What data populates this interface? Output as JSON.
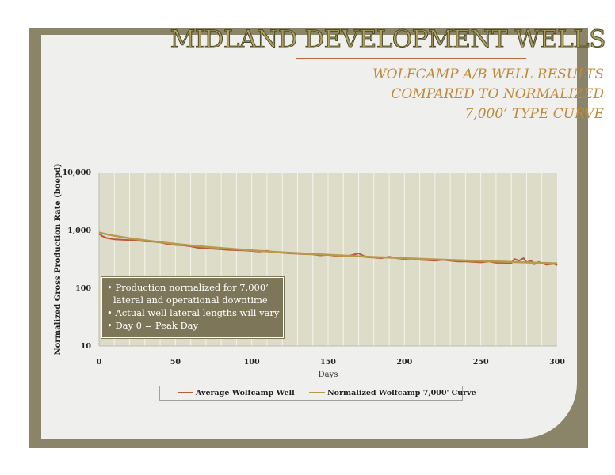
{
  "slide": {
    "title": "MIDLAND DEVELOPMENT WELLS",
    "subtitle_lines": [
      "WOLFCAMP A/B WELL RESULTS",
      "COMPARED TO NORMALIZED",
      "7,000’ TYPE CURVE"
    ]
  },
  "notes": [
    "• Production normalized for 7,000’",
    "  lateral and operational downtime",
    "• Actual well lateral lengths will vary",
    "• Day 0 = Peak Day"
  ],
  "colors": {
    "frame": "#8a8468",
    "average_series": "#b85a3c",
    "type_curve_series": "#b89a4c",
    "plot_background": "#dcdcc8"
  },
  "chart_data": {
    "type": "line",
    "title": "",
    "xlabel": "Days",
    "ylabel": "Normalized Gross Production Rate (boepd)",
    "xlim": [
      0,
      300
    ],
    "ylim": [
      10,
      10000
    ],
    "yscale": "log",
    "x_ticks": [
      0,
      50,
      100,
      150,
      200,
      250,
      300
    ],
    "y_ticks": [
      10,
      100,
      1000,
      10000
    ],
    "y_tick_labels": [
      "10",
      "100",
      "1,000",
      "10,000"
    ],
    "grid": "vertical",
    "legend": "bottom",
    "series": [
      {
        "name": "Average Wolfcamp Well",
        "x": [
          0,
          2,
          5,
          10,
          15,
          20,
          25,
          30,
          35,
          40,
          45,
          50,
          55,
          60,
          65,
          70,
          75,
          80,
          85,
          90,
          95,
          100,
          105,
          110,
          115,
          120,
          125,
          130,
          135,
          140,
          145,
          150,
          155,
          160,
          165,
          170,
          175,
          180,
          185,
          190,
          195,
          200,
          205,
          210,
          215,
          220,
          225,
          230,
          235,
          240,
          245,
          250,
          255,
          260,
          265,
          270,
          272,
          275,
          278,
          280,
          283,
          285,
          288,
          290,
          293,
          295,
          298,
          300
        ],
        "y": [
          880,
          800,
          740,
          700,
          690,
          680,
          670,
          650,
          640,
          620,
          580,
          560,
          555,
          530,
          500,
          490,
          480,
          470,
          460,
          455,
          450,
          440,
          430,
          445,
          420,
          410,
          400,
          395,
          390,
          385,
          370,
          380,
          360,
          355,
          370,
          400,
          345,
          340,
          330,
          350,
          330,
          320,
          325,
          310,
          305,
          300,
          310,
          300,
          290,
          290,
          285,
          280,
          290,
          275,
          275,
          270,
          320,
          300,
          330,
          280,
          300,
          260,
          285,
          270,
          255,
          260,
          265,
          250
        ]
      },
      {
        "name": "Normalized Wolfcamp 7,000' Curve",
        "x": [
          0,
          5,
          10,
          15,
          20,
          30,
          40,
          50,
          60,
          70,
          80,
          90,
          100,
          120,
          140,
          160,
          180,
          200,
          220,
          240,
          260,
          280,
          300
        ],
        "y": [
          920,
          860,
          810,
          770,
          735,
          675,
          625,
          585,
          550,
          520,
          495,
          472,
          452,
          418,
          390,
          367,
          347,
          330,
          315,
          302,
          290,
          279,
          269
        ]
      }
    ]
  }
}
